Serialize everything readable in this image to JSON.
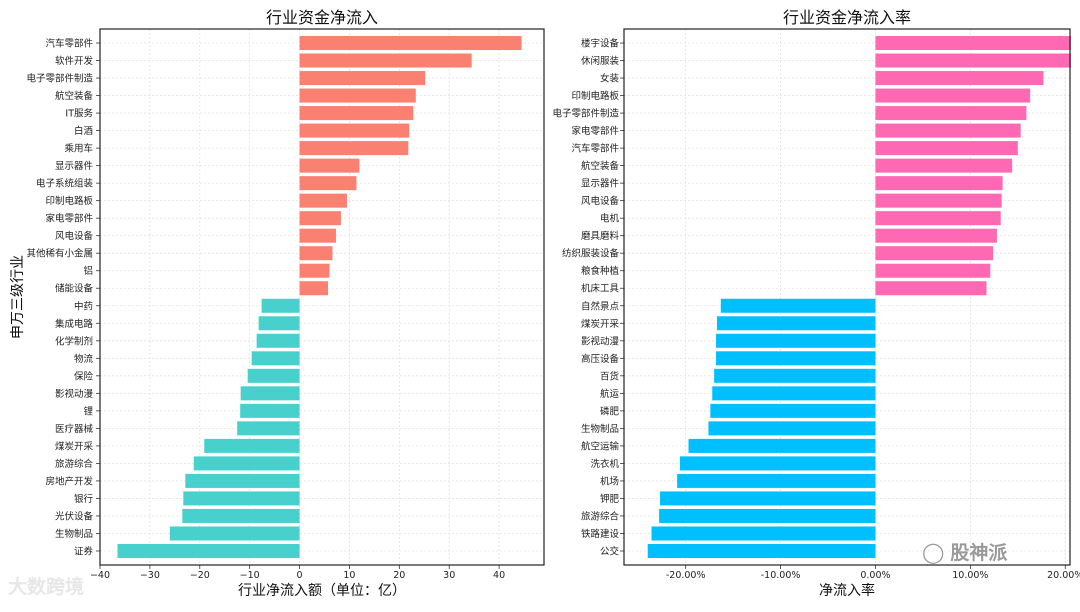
{
  "chart_data": [
    {
      "type": "bar",
      "orientation": "horizontal",
      "title": "行业资金净流入",
      "xlabel": "行业净流入额（单位：亿）",
      "ylabel": "申万三级行业",
      "xlim": [
        -40,
        49
      ],
      "xticks": [
        -40,
        -30,
        -20,
        -10,
        0,
        10,
        20,
        30,
        40
      ],
      "xtick_labels": [
        "−40",
        "−30",
        "−20",
        "−10",
        "0",
        "10",
        "20",
        "30",
        "40"
      ],
      "grid": true,
      "colors": {
        "positive": "#fa8072",
        "negative": "#48d1cc"
      },
      "categories": [
        "汽车零部件",
        "软件开发",
        "电子零部件制造",
        "航空装备",
        "IT服务",
        "白酒",
        "乘用车",
        "显示器件",
        "电子系统组装",
        "印制电路板",
        "家电零部件",
        "风电设备",
        "其他稀有小金属",
        "铝",
        "储能设备",
        "中药",
        "集成电路",
        "化学制剂",
        "物流",
        "保险",
        "影视动漫",
        "锂",
        "医疗器械",
        "煤炭开采",
        "旅游综合",
        "房地产开发",
        "银行",
        "光伏设备",
        "生物制品",
        "证券"
      ],
      "values": [
        44.5,
        34.5,
        25.2,
        23.3,
        22.8,
        22.0,
        21.8,
        12.0,
        11.4,
        9.5,
        8.3,
        7.3,
        6.6,
        6.0,
        5.7,
        -7.6,
        -8.2,
        -8.6,
        -9.6,
        -10.4,
        -11.8,
        -11.9,
        -12.5,
        -19.1,
        -21.2,
        -22.9,
        -23.3,
        -23.5,
        -26.0,
        -36.5
      ]
    },
    {
      "type": "bar",
      "orientation": "horizontal",
      "title": "行业资金净流入率",
      "xlabel": "净流入率",
      "xlim": [
        -26.5,
        20.5
      ],
      "xticks": [
        -20,
        -10,
        0,
        10,
        20
      ],
      "xtick_labels": [
        "-20.00%",
        "-10.00%",
        "0.00%",
        "10.00%",
        "20.00%"
      ],
      "grid": true,
      "colors": {
        "positive": "#ff69b4",
        "negative": "#00bfff"
      },
      "categories": [
        "楼宇设备",
        "休闲服装",
        "女装",
        "印制电路板",
        "电子零部件制造",
        "家电零部件",
        "汽车零部件",
        "航空装备",
        "显示器件",
        "风电设备",
        "电机",
        "磨具磨料",
        "纺织服装设备",
        "粮食种植",
        "机床工具",
        "自然景点",
        "煤炭开采",
        "影视动漫",
        "高压设备",
        "百货",
        "航运",
        "磷肥",
        "生物制品",
        "航空运输",
        "洗衣机",
        "机场",
        "钾肥",
        "旅游综合",
        "铁路建设",
        "公交"
      ],
      "values": [
        20.6,
        20.6,
        17.7,
        16.3,
        15.9,
        15.3,
        15.0,
        14.4,
        13.4,
        13.3,
        13.2,
        12.8,
        12.4,
        12.1,
        11.7,
        -16.3,
        -16.7,
        -16.8,
        -16.8,
        -17.0,
        -17.2,
        -17.4,
        -17.6,
        -19.7,
        -20.6,
        -20.9,
        -22.7,
        -22.8,
        -23.6,
        -24.0
      ]
    }
  ],
  "watermarks": {
    "left": "大数跨境",
    "right": "股神派",
    "right_icon": "wechat-icon"
  }
}
